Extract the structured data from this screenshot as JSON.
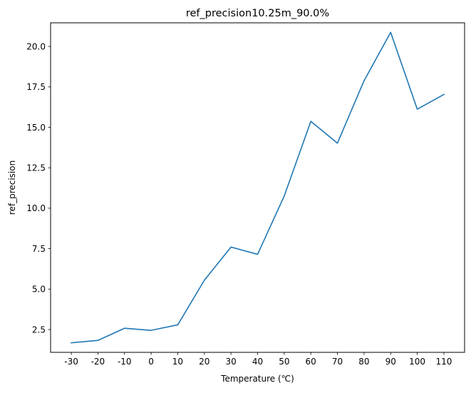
{
  "chart_data": {
    "type": "line",
    "title": "ref_precision10.25m_90.0%",
    "xlabel": "Temperature (℃)",
    "ylabel": "ref_precision",
    "categories": [
      "-30",
      "-20",
      "-10",
      "0",
      "10",
      "20",
      "30",
      "40",
      "50",
      "60",
      "70",
      "80",
      "90",
      "100",
      "110"
    ],
    "series": [
      {
        "values": [
          1.68,
          1.83,
          2.58,
          2.45,
          2.79,
          5.55,
          7.6,
          7.15,
          10.75,
          15.37,
          14.02,
          17.88,
          20.87,
          16.12,
          17.03
        ]
      }
    ],
    "ylim": [
      1.09,
      21.46
    ],
    "yticks": [
      2.5,
      5.0,
      7.5,
      10.0,
      12.5,
      15.0,
      17.5,
      20.0
    ],
    "ytick_labels": [
      "2.5",
      "5.0",
      "7.5",
      "10.0",
      "12.5",
      "15.0",
      "17.5",
      "20.0"
    ],
    "grid": false,
    "line_color": "#1f77b4"
  }
}
